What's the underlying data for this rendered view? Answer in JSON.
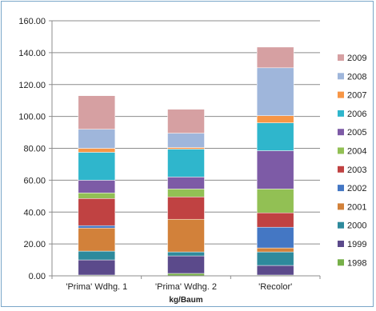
{
  "chart_data": {
    "type": "bar",
    "stacked": true,
    "xlabel": "kg/Baum",
    "ylabel": "",
    "title": "",
    "ylim": [
      0,
      160
    ],
    "yticks": [
      "0.00",
      "20.00",
      "40.00",
      "60.00",
      "80.00",
      "100.00",
      "120.00",
      "140.00",
      "160.00"
    ],
    "yticks_values": [
      0,
      20,
      40,
      60,
      80,
      100,
      120,
      140,
      160
    ],
    "grid": true,
    "legend_position": "right",
    "categories": [
      "'Prima' Wdhg. 1",
      "'Prima' Wdhg. 2",
      "'Recolor'"
    ],
    "series": [
      {
        "name": "1998",
        "color": "#77b049",
        "values": [
          0.5,
          1.5,
          0.5
        ]
      },
      {
        "name": "1999",
        "color": "#5b4a8b",
        "values": [
          9.5,
          11.0,
          6.0
        ]
      },
      {
        "name": "2000",
        "color": "#2e8a9c",
        "values": [
          5.5,
          2.5,
          8.5
        ]
      },
      {
        "name": "2001",
        "color": "#d2813a",
        "values": [
          14.5,
          20.5,
          2.5
        ]
      },
      {
        "name": "2002",
        "color": "#4477c4",
        "values": [
          1.5,
          0.0,
          13.0
        ]
      },
      {
        "name": "2003",
        "color": "#c04242",
        "values": [
          17.0,
          14.0,
          9.0
        ]
      },
      {
        "name": "2004",
        "color": "#92c054",
        "values": [
          3.5,
          5.0,
          15.0
        ]
      },
      {
        "name": "2005",
        "color": "#7d5ba6",
        "values": [
          8.0,
          7.5,
          24.0
        ]
      },
      {
        "name": "2006",
        "color": "#2fb6cc",
        "values": [
          17.5,
          17.5,
          17.5
        ]
      },
      {
        "name": "2007",
        "color": "#f79646",
        "values": [
          2.5,
          1.0,
          4.5
        ]
      },
      {
        "name": "2008",
        "color": "#9fb6db",
        "values": [
          12.0,
          9.0,
          30.0
        ]
      },
      {
        "name": "2009",
        "color": "#d6a0a2",
        "values": [
          21.0,
          15.0,
          13.0
        ]
      }
    ]
  }
}
